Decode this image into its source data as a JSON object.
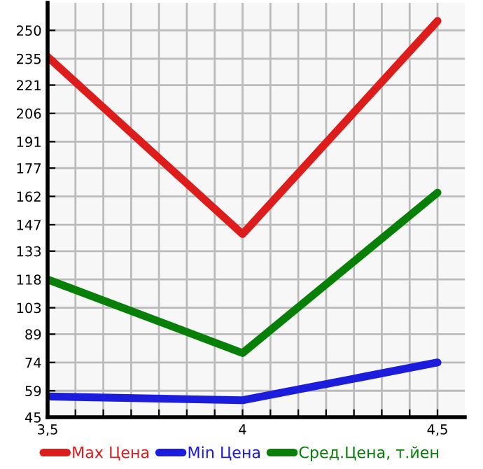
{
  "chart_data": {
    "type": "line",
    "x": [
      3.5,
      4,
      4.5
    ],
    "series": [
      {
        "name": "Max Цена",
        "color": "#dd1c1c",
        "values": [
          236,
          142,
          255
        ]
      },
      {
        "name": "Min Цена",
        "color": "#1c1cdd",
        "values": [
          56,
          54,
          74
        ]
      },
      {
        "name": "Сред.Цена, т.йен",
        "color": "#088008",
        "values": [
          118,
          79,
          164
        ]
      }
    ],
    "xlim": [
      3.5,
      4.57
    ],
    "xticks": [
      {
        "value": 3.5,
        "label": "3,5"
      },
      {
        "value": 3.5714,
        "label": null
      },
      {
        "value": 3.6429,
        "label": null
      },
      {
        "value": 3.7143,
        "label": null
      },
      {
        "value": 3.7857,
        "label": null
      },
      {
        "value": 3.8571,
        "label": null
      },
      {
        "value": 3.9286,
        "label": null
      },
      {
        "value": 4,
        "label": "4"
      },
      {
        "value": 4.0714,
        "label": null
      },
      {
        "value": 4.1429,
        "label": null
      },
      {
        "value": 4.2143,
        "label": null
      },
      {
        "value": 4.2857,
        "label": null
      },
      {
        "value": 4.3571,
        "label": null
      },
      {
        "value": 4.4286,
        "label": null
      },
      {
        "value": 4.5,
        "label": "4,5"
      }
    ],
    "ylim": [
      45,
      264.6
    ],
    "yticks": [
      45,
      59,
      74,
      89,
      103,
      118,
      133,
      147,
      162,
      177,
      191,
      206,
      221,
      235,
      250
    ],
    "grid": true,
    "legend": "bottom",
    "marker": "none",
    "line_style": "solid"
  }
}
